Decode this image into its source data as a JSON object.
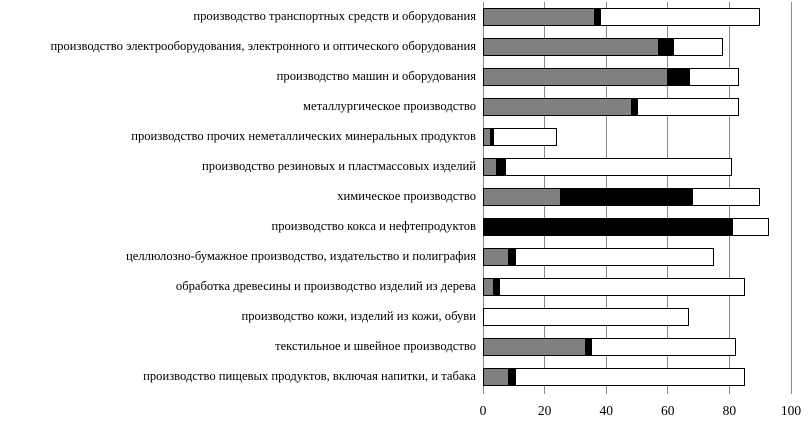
{
  "chart_data": {
    "type": "bar",
    "orientation": "horizontal",
    "stacked": true,
    "title": "",
    "xlabel": "",
    "ylabel": "",
    "xlim": [
      0,
      100
    ],
    "xticks": [
      0,
      20,
      40,
      60,
      80,
      100
    ],
    "grid": true,
    "legend": "none",
    "categories": [
      "производство транспортных средств и оборудования",
      "производство электрооборудования, электронного и оптического оборудования",
      "производство машин и оборудования",
      "металлургическое производство",
      "производство прочих неметаллических минеральных продуктов",
      "производство резиновых и пластмассовых изделий",
      "химическое производство",
      "производство кокса и нефтепродуктов",
      "целлюлозно-бумажное производство, издательство и полиграфия",
      "обработка древесины и производство изделий из дерева",
      "производство кожи, изделий из кожи, обуви",
      "текстильное и швейное производство",
      "производство пищевых продуктов,   включая напитки, и табака"
    ],
    "series": [
      {
        "name": "gray",
        "color": "#808080",
        "values": [
          36,
          57,
          60,
          48,
          2,
          4,
          25,
          0,
          8,
          3,
          0,
          33,
          8
        ]
      },
      {
        "name": "black",
        "color": "#000000",
        "values": [
          2,
          5,
          7,
          2,
          1,
          3,
          43,
          81,
          2,
          2,
          0,
          2,
          2
        ]
      },
      {
        "name": "white",
        "color": "#ffffff",
        "values": [
          52,
          16,
          16,
          33,
          21,
          74,
          22,
          12,
          65,
          80,
          67,
          47,
          75
        ]
      }
    ]
  }
}
